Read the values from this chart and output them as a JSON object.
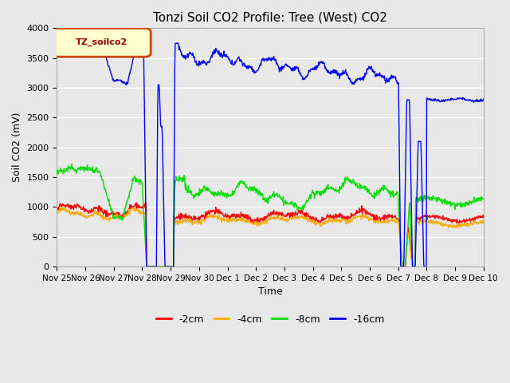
{
  "title": "Tonzi Soil CO2 Profile: Tree (West) CO2",
  "xlabel": "Time",
  "ylabel": "Soil CO2 (mV)",
  "ylim": [
    0,
    4000
  ],
  "yticks": [
    0,
    500,
    1000,
    1500,
    2000,
    2500,
    3000,
    3500,
    4000
  ],
  "legend_label": "TZ_soilco2",
  "legend_entries": [
    "-2cm",
    "-4cm",
    "-8cm",
    "-16cm"
  ],
  "line_colors": [
    "#ff0000",
    "#ffaa00",
    "#00dd00",
    "#0000ff"
  ],
  "bg_color": "#e8e8e8",
  "plot_bg": "#e8e8e8",
  "xtick_labels": [
    "Nov 25",
    "Nov 26",
    "Nov 27",
    "Nov 28",
    "Nov 29",
    "Nov 30",
    "Dec 1",
    "Dec 2",
    "Dec 3",
    "Dec 4",
    "Dec 5",
    "Dec 6",
    "Dec 7",
    "Dec 8",
    "Dec 9",
    "Dec 10"
  ],
  "num_points": 1000
}
